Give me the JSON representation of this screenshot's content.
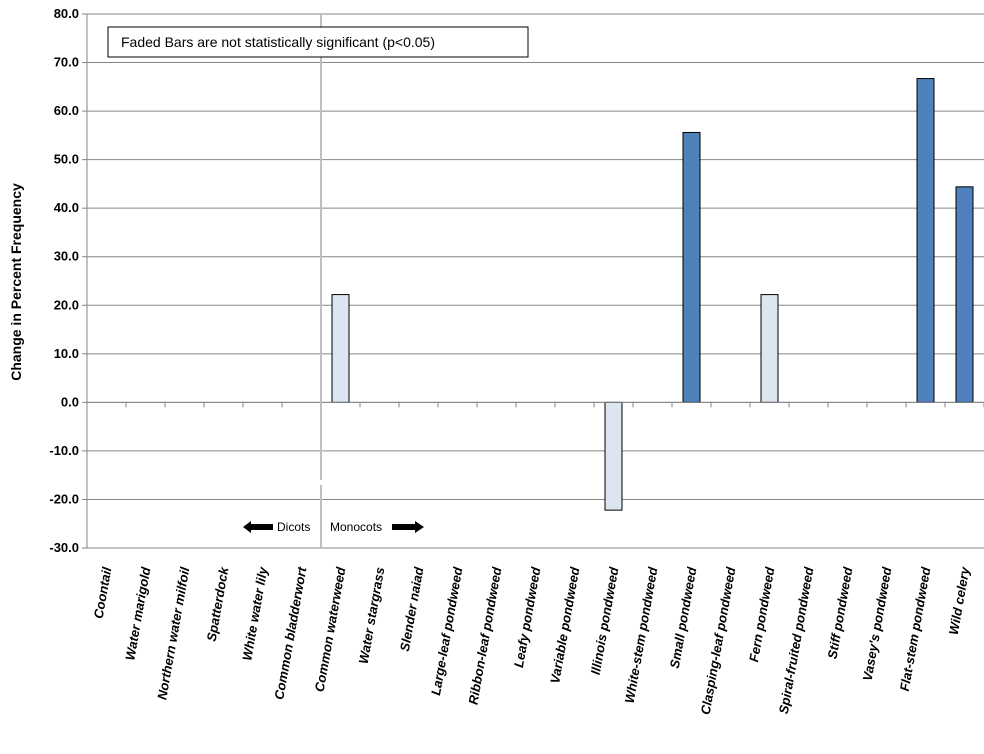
{
  "chart_data": {
    "type": "bar",
    "title": "",
    "xlabel": "",
    "ylabel": "Change in Percent Frequency",
    "ylim": [
      -30,
      80
    ],
    "yticks": [
      80,
      70,
      60,
      50,
      40,
      30,
      20,
      10,
      0,
      -10,
      -20,
      -30
    ],
    "ytick_labels": [
      "80.0",
      "70.0",
      "60.0",
      "50.0",
      "40.0",
      "30.0",
      "20.0",
      "10.0",
      "0.0",
      "-10.0",
      "-20.0",
      "-30.0"
    ],
    "grid": true,
    "categories": [
      "Coontail",
      "Water marigold",
      "Northern water milfoil",
      "Spatterdock",
      "White water lily",
      "Common bladderwort",
      "Common waterweed",
      "Water stargrass",
      "Slender naiad",
      "Large-leaf pondweed",
      "Ribbon-leaf pondweed",
      "Leafy pondweed",
      "Variable pondweed",
      "Illinois pondweed",
      "White-stem pondweed",
      "Small pondweed",
      "Clasping-leaf pondweed",
      "Fern pondweed",
      "Spiral-fruited pondweed",
      "Stiff pondweed",
      "Vasey's pondweed",
      "Flat-stem pondweed",
      "Wild celery"
    ],
    "values": [
      0,
      0,
      0,
      0,
      0,
      0,
      22.2,
      0,
      0,
      0,
      0,
      0,
      0,
      -22.2,
      0,
      55.6,
      0,
      22.2,
      0,
      0,
      0,
      66.7,
      44.4
    ],
    "significant": [
      false,
      false,
      false,
      false,
      false,
      false,
      false,
      false,
      false,
      false,
      false,
      false,
      false,
      false,
      false,
      true,
      false,
      false,
      false,
      false,
      false,
      true,
      true
    ],
    "colors": {
      "significant": "#4f81bd",
      "not_significant": "#dce6f2",
      "gridline": "#868686",
      "axis": "#868686",
      "divider": "#bfbfbf"
    },
    "note": "Faded Bars are not statistically significant (p<0.05)",
    "annotations": {
      "left": "Dicots",
      "right": "Monocots"
    },
    "divider_after_index": 5
  }
}
